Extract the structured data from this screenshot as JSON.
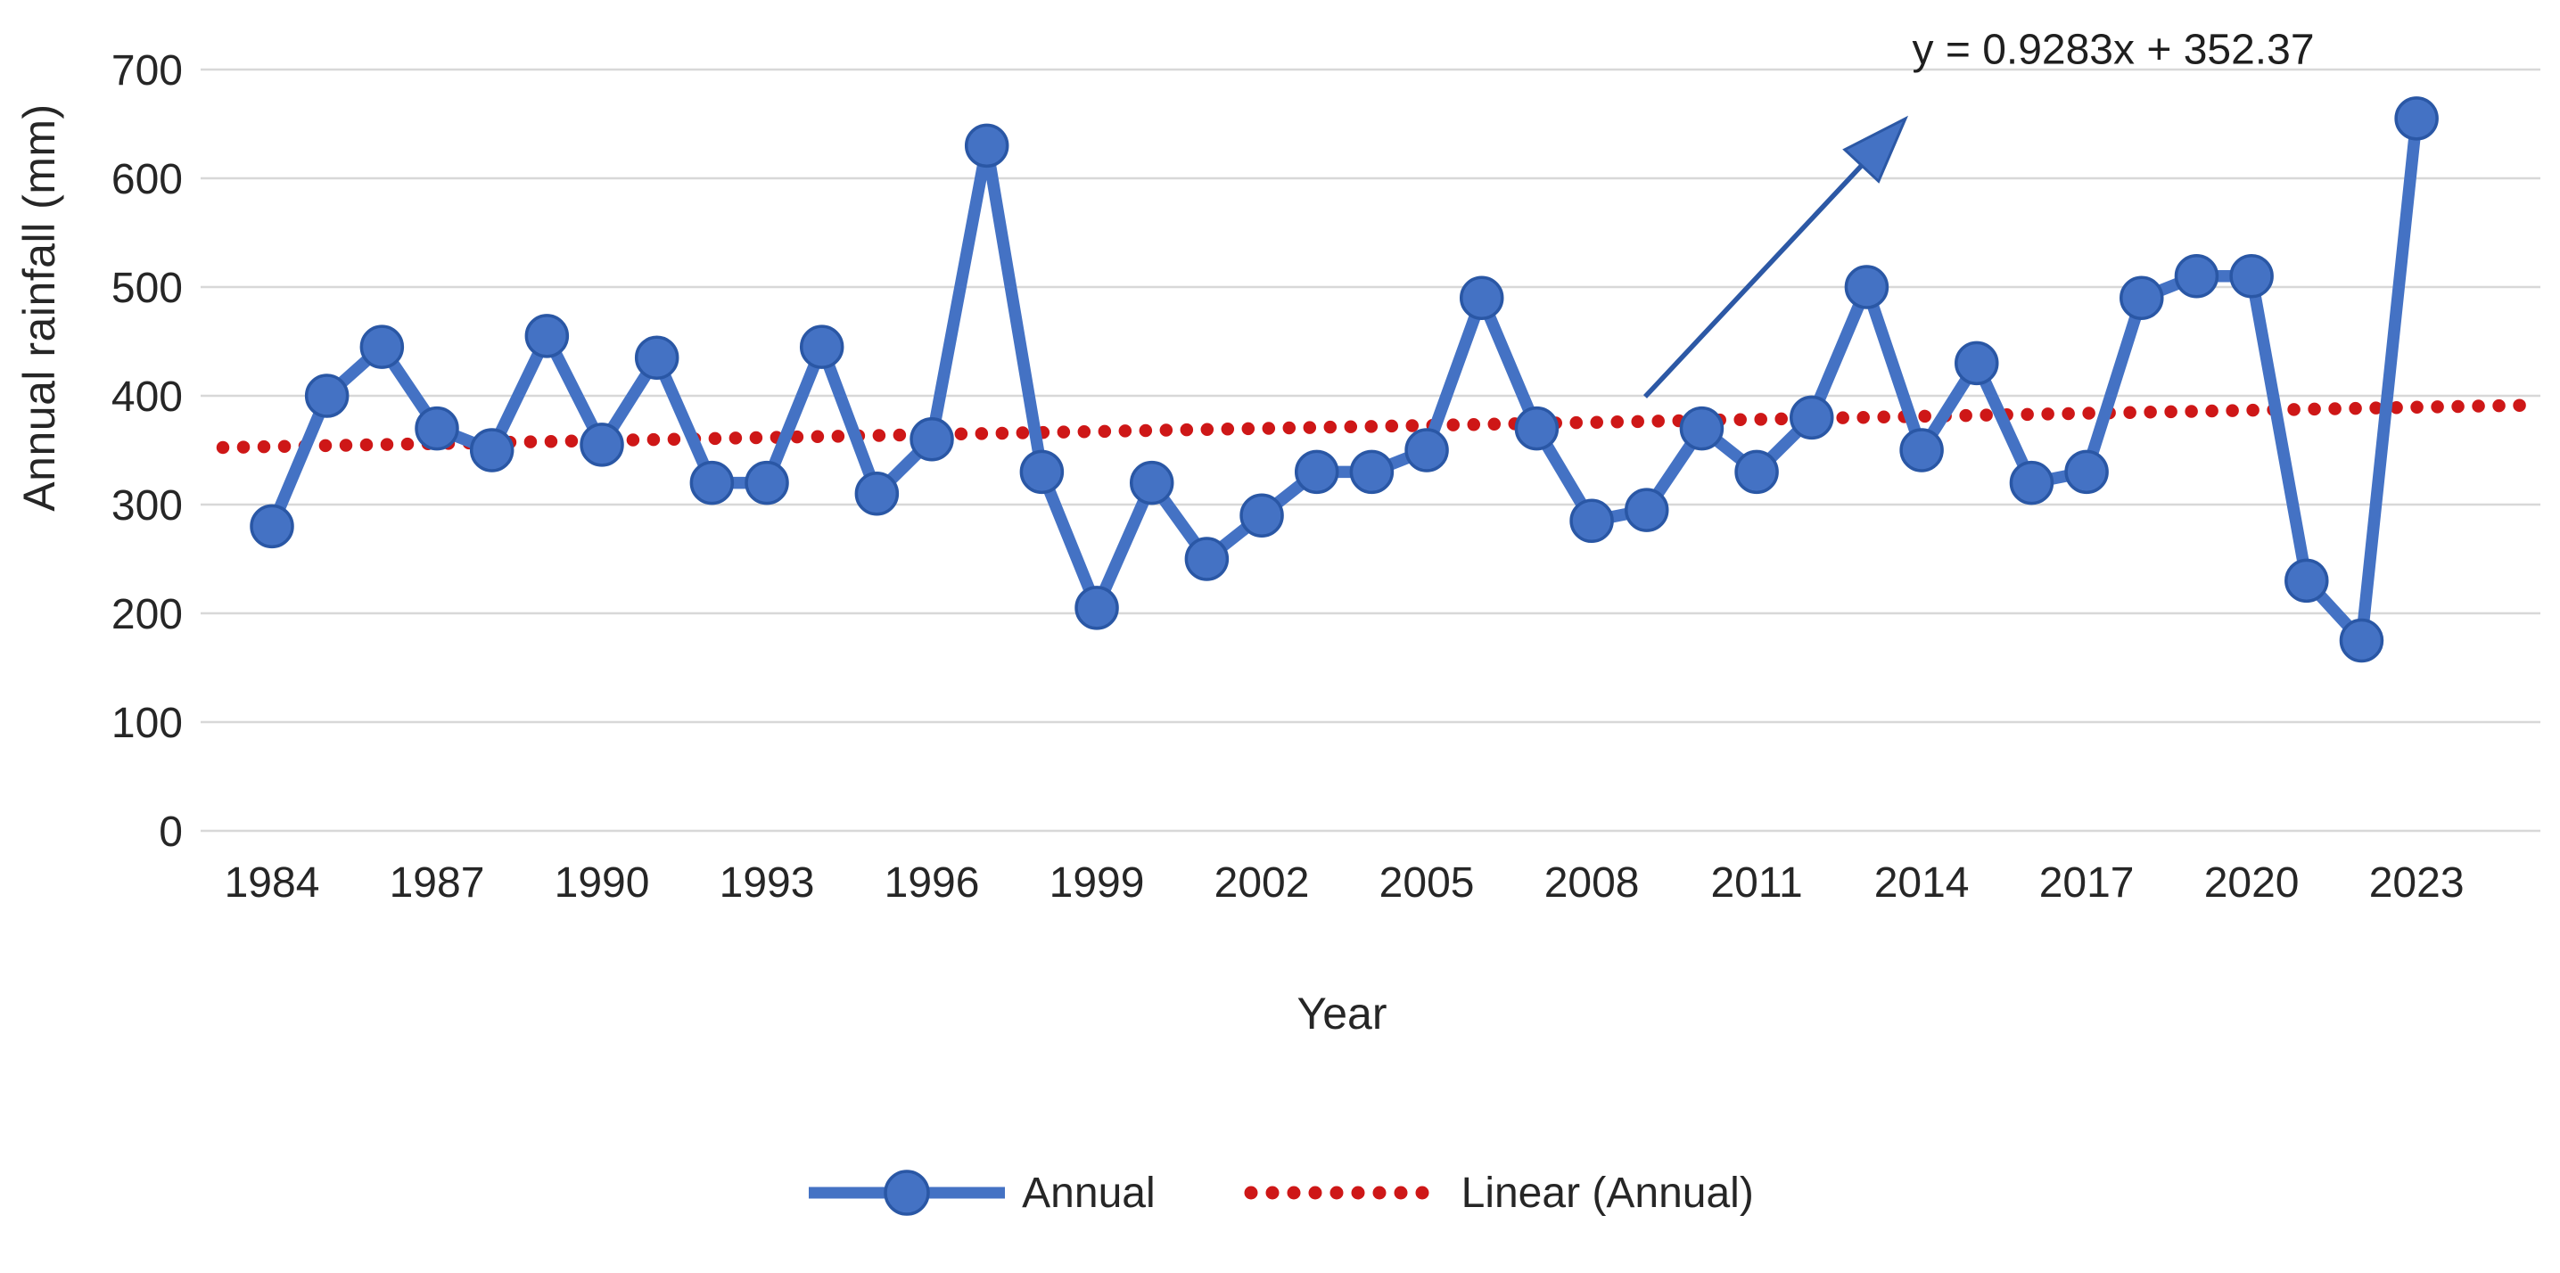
{
  "colors": {
    "series_blue": "#4472C4",
    "marker_border": "#2A57A5",
    "trend_red": "#CE1717",
    "arrow_blue": "#2C58A5",
    "grid": "#D8D8D8",
    "text": "#262626"
  },
  "chart_data": {
    "type": "line",
    "title": "",
    "xlabel": "Year",
    "ylabel": "Annual rainfall (mm)",
    "ylim": [
      0,
      700
    ],
    "ytick_step": 100,
    "grid": "horizontal",
    "legend_position": "bottom",
    "x": [
      1984,
      1985,
      1986,
      1987,
      1988,
      1989,
      1990,
      1991,
      1992,
      1993,
      1994,
      1995,
      1996,
      1997,
      1998,
      1999,
      2000,
      2001,
      2002,
      2003,
      2004,
      2005,
      2006,
      2007,
      2008,
      2009,
      2010,
      2011,
      2012,
      2013,
      2014,
      2015,
      2016,
      2017,
      2018,
      2019,
      2020,
      2021,
      2022,
      2023
    ],
    "xtick_labels": [
      "1984",
      "1987",
      "1990",
      "1993",
      "1996",
      "1999",
      "2002",
      "2005",
      "2008",
      "2011",
      "2014",
      "2017",
      "2020",
      "2023"
    ],
    "series": [
      {
        "name": "Annual",
        "type": "line-with-markers",
        "color": "#4472C4",
        "values": [
          280,
          400,
          445,
          370,
          350,
          455,
          355,
          435,
          320,
          320,
          445,
          310,
          360,
          630,
          330,
          205,
          320,
          250,
          290,
          330,
          330,
          350,
          490,
          370,
          285,
          295,
          370,
          330,
          380,
          500,
          350,
          430,
          320,
          330,
          490,
          510,
          510,
          230,
          175,
          655
        ]
      },
      {
        "name": "Linear (Annual)",
        "type": "trendline",
        "style": "dotted",
        "color": "#CE1717",
        "trend": {
          "slope": 0.9283,
          "intercept": 352.37,
          "equation": "y = 0.9283x + 352.37"
        }
      }
    ]
  }
}
